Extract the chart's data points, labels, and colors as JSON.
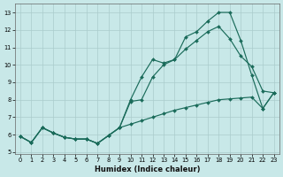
{
  "xlabel": "Humidex (Indice chaleur)",
  "bg_color": "#c8e8e8",
  "grid_color": "#aacccc",
  "line_color": "#1a6b5a",
  "xlim": [
    -0.5,
    23.5
  ],
  "ylim": [
    4.9,
    13.5
  ],
  "xticks": [
    0,
    1,
    2,
    3,
    4,
    5,
    6,
    7,
    8,
    9,
    10,
    11,
    12,
    13,
    14,
    15,
    16,
    17,
    18,
    19,
    20,
    21,
    22,
    23
  ],
  "yticks": [
    5,
    6,
    7,
    8,
    9,
    10,
    11,
    12,
    13
  ],
  "line1_y": [
    5.9,
    5.55,
    6.4,
    6.1,
    5.85,
    5.75,
    5.75,
    5.5,
    5.95,
    6.4,
    8.0,
    9.3,
    10.3,
    10.1,
    10.3,
    11.6,
    11.9,
    12.5,
    13.0,
    13.0,
    11.4,
    9.4,
    7.5,
    8.4
  ],
  "line2_y": [
    5.9,
    5.55,
    6.4,
    6.1,
    5.85,
    5.75,
    5.75,
    5.5,
    5.95,
    6.4,
    7.9,
    8.0,
    9.3,
    10.0,
    10.3,
    10.9,
    11.4,
    11.9,
    12.2,
    11.5,
    10.5,
    9.9,
    8.5,
    8.4
  ],
  "line3_y": [
    5.9,
    5.55,
    6.4,
    6.1,
    5.85,
    5.75,
    5.75,
    5.5,
    5.95,
    6.4,
    6.6,
    6.8,
    7.0,
    7.2,
    7.4,
    7.55,
    7.7,
    7.85,
    8.0,
    8.05,
    8.1,
    8.15,
    7.5,
    8.4
  ]
}
